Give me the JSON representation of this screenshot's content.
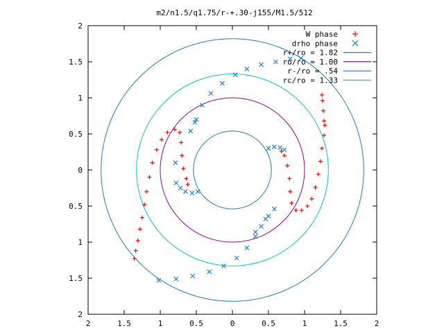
{
  "chart_data": {
    "type": "scatter",
    "title": "m2/n1.5/q1.75/r-+.30-j155/M1.5/512",
    "xlabel": "",
    "ylabel": "",
    "xlim": [
      -2,
      2
    ],
    "ylim": [
      -2,
      2
    ],
    "xticks": [
      -2,
      -1.5,
      -1,
      -0.5,
      0,
      0.5,
      1,
      1.5,
      2
    ],
    "yticks": [
      -2,
      -1.5,
      -1,
      -0.5,
      0,
      0.5,
      1,
      1.5,
      2
    ],
    "xtick_labels": [
      "2",
      "1.5",
      "1",
      "0.5",
      "0",
      "0.5",
      "1",
      "1.5",
      "2"
    ],
    "ytick_labels": [
      "2",
      "1.5",
      "1",
      "0.5",
      "0",
      "0.5",
      "1",
      "1.5",
      "2"
    ],
    "grid": false,
    "legend_position": "top-right",
    "series": [
      {
        "name": "W phase",
        "marker": "plus",
        "color": "#ff0000",
        "points": [
          [
            -1.36,
            -1.23
          ],
          [
            -1.34,
            -1.12
          ],
          [
            -1.31,
            -0.98
          ],
          [
            -1.28,
            -0.82
          ],
          [
            -1.25,
            -0.66
          ],
          [
            -1.22,
            -0.48
          ],
          [
            -1.19,
            -0.3
          ],
          [
            -1.15,
            -0.1
          ],
          [
            -1.11,
            0.1
          ],
          [
            -1.05,
            0.28
          ],
          [
            -0.98,
            0.42
          ],
          [
            -0.9,
            0.52
          ],
          [
            -0.8,
            0.56
          ],
          [
            -0.73,
            0.52
          ],
          [
            -0.71,
            0.38
          ],
          [
            -0.7,
            0.2
          ],
          [
            -0.68,
            0.02
          ],
          [
            -0.64,
            -0.12
          ],
          [
            -0.62,
            -0.2
          ],
          [
            1.28,
            0.62
          ],
          [
            1.27,
            0.48
          ],
          [
            1.24,
            0.3
          ],
          [
            1.22,
            0.12
          ],
          [
            1.19,
            -0.06
          ],
          [
            1.15,
            -0.24
          ],
          [
            1.1,
            -0.4
          ],
          [
            1.04,
            -0.5
          ],
          [
            0.96,
            -0.56
          ],
          [
            0.88,
            -0.56
          ],
          [
            0.82,
            -0.46
          ],
          [
            0.8,
            -0.3
          ],
          [
            0.79,
            -0.12
          ],
          [
            0.76,
            0.06
          ],
          [
            0.72,
            0.2
          ],
          [
            0.68,
            0.26
          ],
          [
            1.27,
            0.68
          ],
          [
            1.26,
            0.82
          ],
          [
            1.25,
            0.96
          ],
          [
            1.24,
            1.04
          ]
        ]
      },
      {
        "name": "drho phase",
        "marker": "cross",
        "color": "#1f7fe0",
        "points": [
          [
            -0.5,
            0.7
          ],
          [
            -0.42,
            0.9
          ],
          [
            -0.3,
            1.06
          ],
          [
            -0.14,
            1.2
          ],
          [
            0.04,
            1.32
          ],
          [
            0.2,
            1.4
          ],
          [
            0.4,
            1.46
          ],
          [
            0.6,
            1.5
          ],
          [
            0.8,
            1.54
          ],
          [
            0.95,
            1.55
          ],
          [
            -0.48,
            -0.3
          ],
          [
            -0.56,
            -0.32
          ],
          [
            -0.65,
            -0.3
          ],
          [
            -0.72,
            -0.25
          ],
          [
            -1.02,
            -1.53
          ],
          [
            -0.78,
            -1.51
          ],
          [
            -0.55,
            -1.47
          ],
          [
            -0.32,
            -1.41
          ],
          [
            -0.12,
            -1.33
          ],
          [
            0.06,
            -1.22
          ],
          [
            0.2,
            -1.08
          ],
          [
            0.32,
            -0.92
          ],
          [
            0.4,
            -0.78
          ],
          [
            0.46,
            -0.68
          ],
          [
            0.58,
            -0.54
          ],
          [
            0.32,
            -0.86
          ],
          [
            0.5,
            -0.64
          ],
          [
            0.5,
            0.3
          ],
          [
            0.58,
            0.32
          ],
          [
            0.66,
            0.31
          ],
          [
            0.72,
            0.28
          ],
          [
            -0.79,
            0.1
          ],
          [
            -0.78,
            -0.18
          ],
          [
            -0.52,
            0.66
          ],
          [
            -0.58,
            0.54
          ]
        ]
      }
    ],
    "circles": [
      {
        "name": "r+/ro = 1.82",
        "radius": 1.82,
        "color": "#1f7fc0"
      },
      {
        "name": "ro/ro = 1.00",
        "radius": 1.0,
        "color": "#9a009a"
      },
      {
        "name": "r-/ro = .54",
        "radius": 0.54,
        "color": "#1f7fc0"
      },
      {
        "name": "rc/ro = 1.33",
        "radius": 1.33,
        "color": "#00c8c8"
      }
    ]
  }
}
